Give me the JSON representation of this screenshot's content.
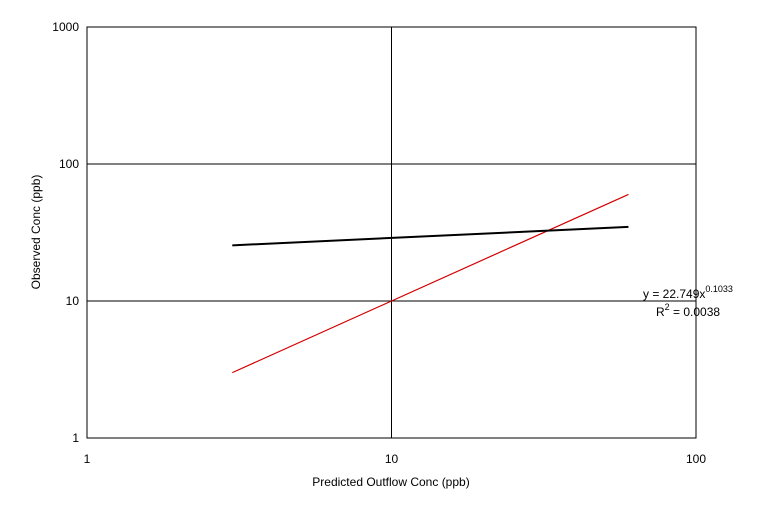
{
  "chart_data": {
    "type": "scatter",
    "title": "",
    "xlabel": "Predicted Outflow Conc (ppb)",
    "ylabel": "Observed Conc (ppb)",
    "x_scale": "log",
    "y_scale": "log",
    "xlim": [
      1,
      100
    ],
    "ylim": [
      1,
      1000
    ],
    "x_ticks": [
      "1",
      "10",
      "100"
    ],
    "y_ticks": [
      "1",
      "10",
      "100",
      "1000"
    ],
    "grid": true,
    "legend": "none",
    "colors": {
      "points": "#000080",
      "trend": "#000000",
      "one_to_one": "#d40000"
    },
    "series": [
      {
        "values_note": "",
        "points": []
      }
    ],
    "trendline": {
      "type": "power",
      "a": 22.749,
      "b": 0.1033,
      "x_range": [
        3,
        60
      ],
      "equation_base": "y = 22.749x",
      "equation_exp": "0.1033",
      "r2_base": "R",
      "r2_sup": "2",
      "r2_rest": " = 0.0038"
    },
    "one_to_one_line": {
      "x_range": [
        3,
        60
      ]
    }
  }
}
